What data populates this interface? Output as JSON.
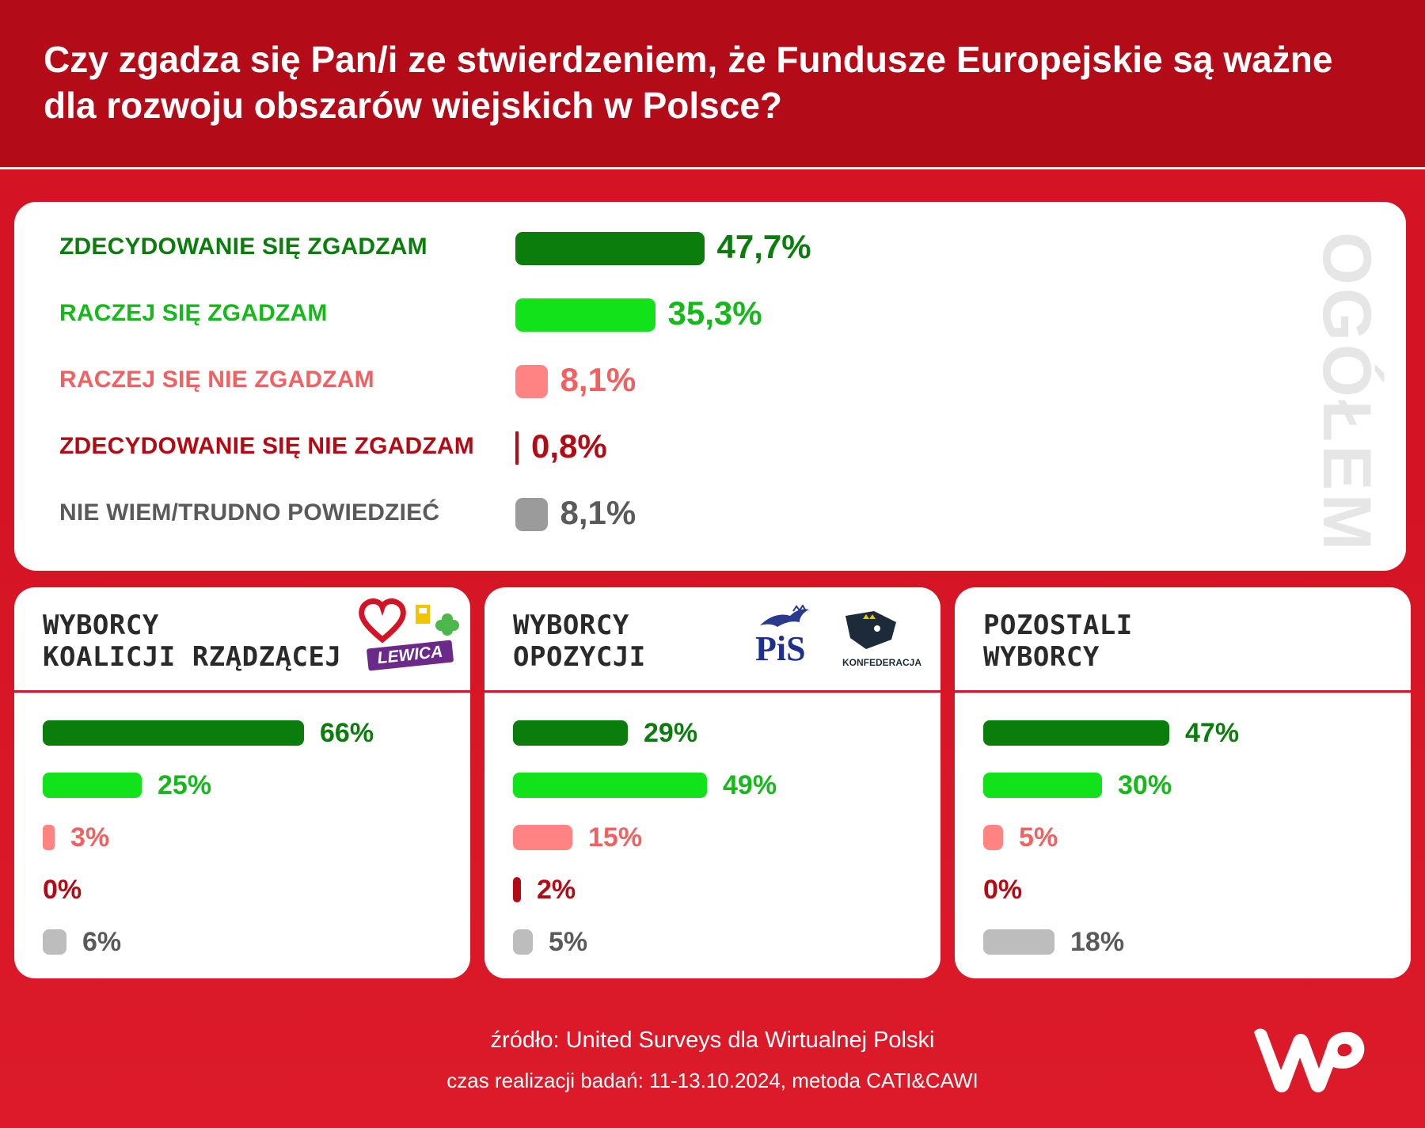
{
  "colors": {
    "strong_agree": "#0a7d0c",
    "agree": "#11e21a",
    "disagree": "#ff8383",
    "strong_disagree": "#b40a14",
    "dont_know": "#9b9b9b",
    "dont_know_sub": "#bdbdbd",
    "label_strong_agree": "#0a7d0c",
    "label_agree": "#17b81c",
    "label_disagree": "#f06262",
    "label_strong_disagree": "#b40a14",
    "label_dont_know": "#5a5a5a"
  },
  "header": {
    "title": "Czy zgadza się Pan/i ze stwierdzeniem, że Fundusze Europejskie są ważne dla rozwoju obszarów wiejskich w Polsce?"
  },
  "overall": {
    "side_label": "OGÓŁEM",
    "rows": [
      {
        "label": "ZDECYDOWANIE SIĘ ZGADZAM",
        "value_text": "47,7%"
      },
      {
        "label": "RACZEJ SIĘ ZGADZAM",
        "value_text": "35,3%"
      },
      {
        "label": "RACZEJ SIĘ NIE ZGADZAM",
        "value_text": "8,1%"
      },
      {
        "label": "ZDECYDOWANIE SIĘ NIE ZGADZAM",
        "value_text": "0,8%"
      },
      {
        "label": "NIE WIEM/TRUDNO POWIEDZIEĆ",
        "value_text": "8,1%"
      }
    ]
  },
  "groups": [
    {
      "title_line1": "WYBORCY",
      "title_line2": "KOALICJI RZĄDZĄCEJ",
      "values_text": [
        "66%",
        "25%",
        "3%",
        "0%",
        "6%"
      ],
      "logos": [
        "heart-logo",
        "trzecia-droga-logo",
        "LEWICA"
      ]
    },
    {
      "title_line1": "WYBORCY",
      "title_line2": "OPOZYCJI",
      "values_text": [
        "29%",
        "49%",
        "15%",
        "2%",
        "5%"
      ],
      "logos": [
        "PiS",
        "KONFEDERACJA"
      ]
    },
    {
      "title_line1": "POZOSTALI",
      "title_line2": "WYBORCY",
      "values_text": [
        "47%",
        "30%",
        "5%",
        "0%",
        "18%"
      ],
      "logos": []
    }
  ],
  "chart_data": [
    {
      "type": "bar",
      "orientation": "horizontal",
      "title": "OGÓŁEM",
      "categories": [
        "ZDECYDOWANIE SIĘ ZGADZAM",
        "RACZEJ SIĘ ZGADZAM",
        "RACZEJ SIĘ NIE ZGADZAM",
        "ZDECYDOWANIE SIĘ NIE ZGADZAM",
        "NIE WIEM/TRUDNO POWIEDZIEĆ"
      ],
      "values": [
        47.7,
        35.3,
        8.1,
        0.8,
        8.1
      ]
    },
    {
      "type": "bar",
      "orientation": "horizontal",
      "title": "WYBORCY KOALICJI RZĄDZĄCEJ",
      "categories": [
        "ZDECYDOWANIE SIĘ ZGADZAM",
        "RACZEJ SIĘ ZGADZAM",
        "RACZEJ SIĘ NIE ZGADZAM",
        "ZDECYDOWANIE SIĘ NIE ZGADZAM",
        "NIE WIEM/TRUDNO POWIEDZIEĆ"
      ],
      "values": [
        66,
        25,
        3,
        0,
        6
      ]
    },
    {
      "type": "bar",
      "orientation": "horizontal",
      "title": "WYBORCY OPOZYCJI",
      "categories": [
        "ZDECYDOWANIE SIĘ ZGADZAM",
        "RACZEJ SIĘ ZGADZAM",
        "RACZEJ SIĘ NIE ZGADZAM",
        "ZDECYDOWANIE SIĘ NIE ZGADZAM",
        "NIE WIEM/TRUDNO POWIEDZIEĆ"
      ],
      "values": [
        29,
        49,
        15,
        2,
        5
      ]
    },
    {
      "type": "bar",
      "orientation": "horizontal",
      "title": "POZOSTALI WYBORCY",
      "categories": [
        "ZDECYDOWANIE SIĘ ZGADZAM",
        "RACZEJ SIĘ ZGADZAM",
        "RACZEJ SIĘ NIE ZGADZAM",
        "ZDECYDOWANIE SIĘ NIE ZGADZAM",
        "NIE WIEM/TRUDNO POWIEDZIEĆ"
      ],
      "values": [
        47,
        30,
        5,
        0,
        18
      ]
    }
  ],
  "footer": {
    "source": "źródło: United Surveys dla Wirtualnej Polski",
    "meta": "czas realizacji badań: 11-13.10.2024, metoda CATI&CAWI",
    "logo": "WP"
  }
}
